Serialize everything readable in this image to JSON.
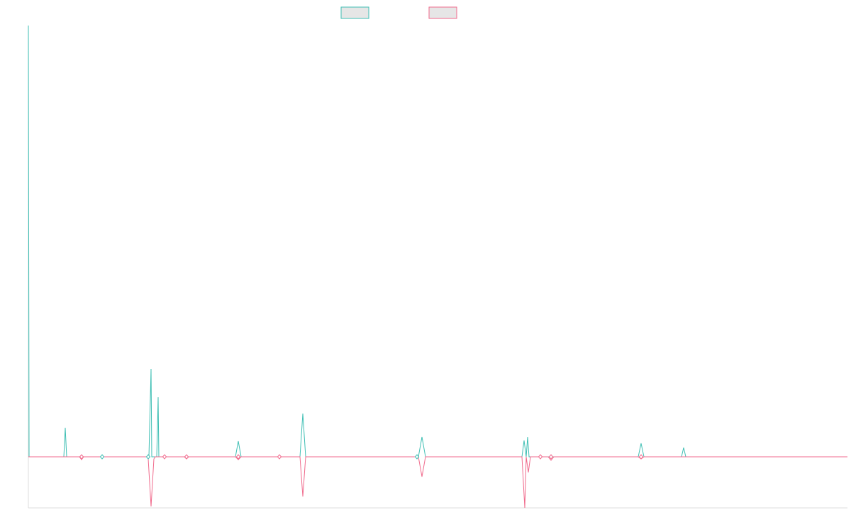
{
  "chart_data": {
    "type": "line",
    "legend": {
      "placement": "top-center",
      "entries": [
        {
          "name": "",
          "color": "#3fbfb4",
          "fill": "#e6e6e6"
        },
        {
          "name": "",
          "color": "#f06a8c",
          "fill": "#e6e6e6"
        }
      ]
    },
    "ylim": [
      -72,
      608
    ],
    "xlim": [
      0,
      1155
    ],
    "grid": false,
    "series": [
      {
        "name": "",
        "color": "#3fbfb4",
        "x": [
          0,
          1,
          3,
          50,
          52,
          54,
          98,
          102,
          104,
          167,
          170,
          173,
          174,
          178,
          181,
          183,
          184,
          186,
          190,
          201,
          220,
          292,
          296,
          300,
          350,
          354,
          383,
          387,
          391,
          550,
          555,
          560,
          696,
          699,
          702,
          704,
          706,
          710,
          718,
          732,
          735,
          740,
          860,
          864,
          868,
          921,
          924,
          927,
          1155
        ],
        "y": [
          608,
          0,
          0,
          0,
          41,
          0,
          0,
          0,
          0,
          0,
          0,
          124,
          0,
          0,
          0,
          84,
          0,
          0,
          0,
          0,
          0,
          0,
          22,
          0,
          0,
          0,
          0,
          61,
          0,
          0,
          28,
          0,
          0,
          23,
          0,
          28,
          0,
          0,
          0,
          0,
          0,
          0,
          0,
          19,
          0,
          0,
          13,
          0,
          0
        ]
      },
      {
        "name": "",
        "color": "#f06a8c",
        "x": [
          0,
          50,
          72,
          75,
          78,
          100,
          102,
          104,
          167,
          169,
          173,
          177,
          179,
          190,
          220,
          223,
          226,
          292,
          296,
          300,
          350,
          354,
          383,
          387,
          391,
          550,
          555,
          560,
          696,
          700,
          702,
          705,
          708,
          718,
          733,
          737,
          741,
          860,
          864,
          868,
          1155
        ],
        "y": [
          0,
          0,
          0,
          -4,
          0,
          0,
          0,
          0,
          0,
          -3,
          -70,
          -3,
          0,
          0,
          0,
          -3,
          0,
          0,
          -4,
          0,
          0,
          0,
          0,
          -56,
          0,
          0,
          -28,
          0,
          0,
          -72,
          0,
          -22,
          0,
          0,
          0,
          -5,
          0,
          0,
          -3,
          0,
          0
        ]
      }
    ]
  }
}
